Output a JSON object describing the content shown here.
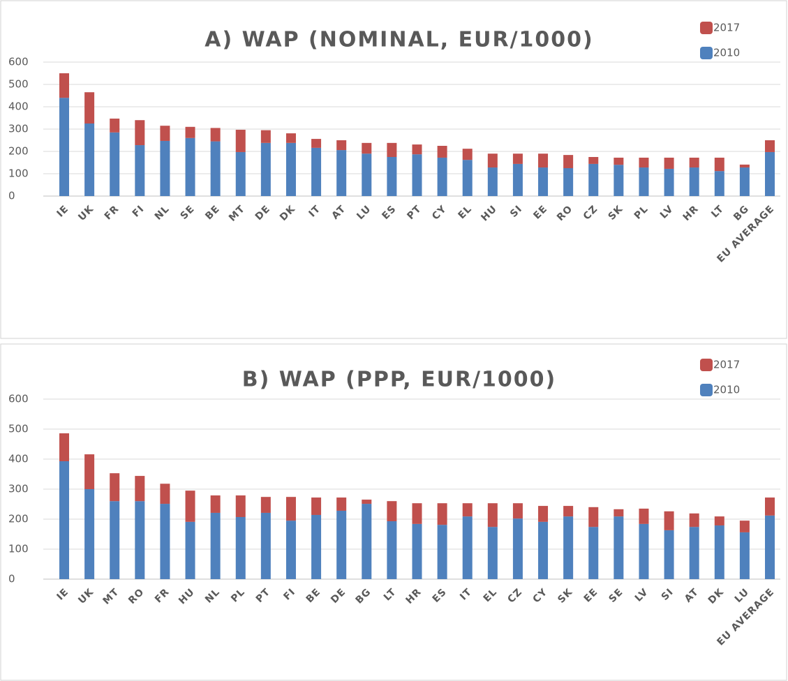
{
  "chart_data": [
    {
      "type": "bar",
      "stacked": true,
      "title": "A) WAP (NOMINAL, EUR/1000)",
      "categories": [
        "IE",
        "UK",
        "FR",
        "FI",
        "NL",
        "SE",
        "BE",
        "MT",
        "DE",
        "DK",
        "IT",
        "AT",
        "LU",
        "ES",
        "PT",
        "CY",
        "EL",
        "HU",
        "SI",
        "EE",
        "RO",
        "CZ",
        "SK",
        "PL",
        "LV",
        "HR",
        "LT",
        "BG",
        "EU AVERAGE"
      ],
      "series": [
        {
          "name": "2017",
          "color": "#c0504d",
          "values": [
            110,
            140,
            62,
            112,
            68,
            50,
            60,
            100,
            57,
            43,
            40,
            44,
            48,
            63,
            44,
            53,
            50,
            62,
            46,
            62,
            59,
            31,
            32,
            44,
            50,
            44,
            60,
            13,
            53
          ]
        },
        {
          "name": "2010",
          "color": "#4f81bd",
          "values": [
            440,
            325,
            285,
            228,
            247,
            260,
            245,
            197,
            238,
            238,
            216,
            206,
            190,
            175,
            187,
            172,
            162,
            128,
            144,
            128,
            125,
            144,
            140,
            128,
            122,
            128,
            112,
            128,
            197
          ]
        }
      ],
      "ylim": [
        0,
        600
      ],
      "yticks": [
        0,
        100,
        200,
        300,
        400,
        500,
        600
      ],
      "grid": true,
      "legend": "top-right"
    },
    {
      "type": "bar",
      "stacked": true,
      "title": "B) WAP (PPP, EUR/1000)",
      "categories": [
        "IE",
        "UK",
        "MT",
        "RO",
        "FR",
        "HU",
        "NL",
        "PL",
        "PT",
        "FI",
        "BE",
        "DE",
        "BG",
        "LT",
        "HR",
        "ES",
        "IT",
        "EL",
        "CZ",
        "CY",
        "SK",
        "EE",
        "SE",
        "LV",
        "SI",
        "AT",
        "DK",
        "LU",
        "EU AVERAGE"
      ],
      "series": [
        {
          "name": "2017",
          "color": "#c0504d",
          "values": [
            93,
            116,
            93,
            84,
            67,
            104,
            58,
            72,
            53,
            79,
            58,
            44,
            14,
            67,
            69,
            72,
            44,
            79,
            51,
            53,
            35,
            66,
            24,
            51,
            63,
            45,
            30,
            39,
            60
          ]
        },
        {
          "name": "2010",
          "color": "#4f81bd",
          "values": [
            393,
            300,
            260,
            260,
            251,
            191,
            221,
            207,
            221,
            195,
            214,
            228,
            251,
            193,
            184,
            181,
            209,
            174,
            202,
            191,
            209,
            174,
            209,
            184,
            163,
            174,
            179,
            156,
            212
          ]
        }
      ],
      "ylim": [
        0,
        600
      ],
      "yticks": [
        0,
        100,
        200,
        300,
        400,
        500,
        600
      ],
      "grid": true,
      "legend": "top-right"
    }
  ]
}
